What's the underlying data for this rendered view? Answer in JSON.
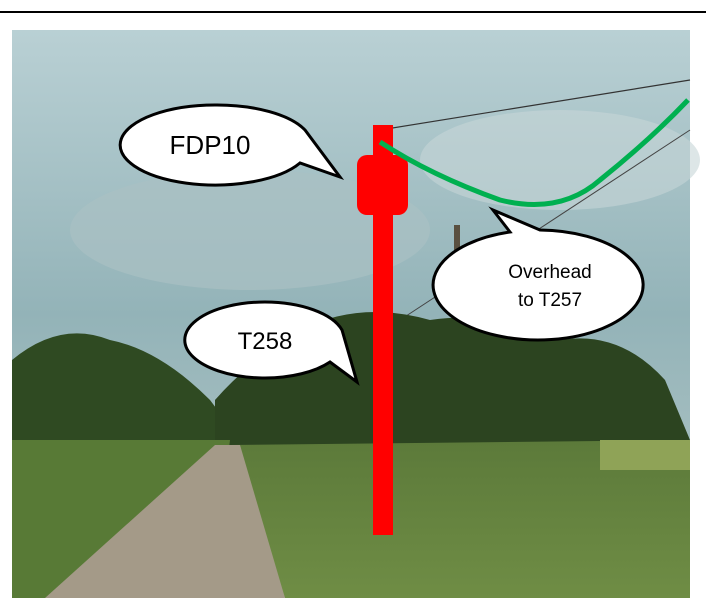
{
  "callouts": [
    {
      "label": "FDP10"
    },
    {
      "label": "T258"
    },
    {
      "lines": [
        "Overhead",
        "to T257"
      ]
    }
  ]
}
